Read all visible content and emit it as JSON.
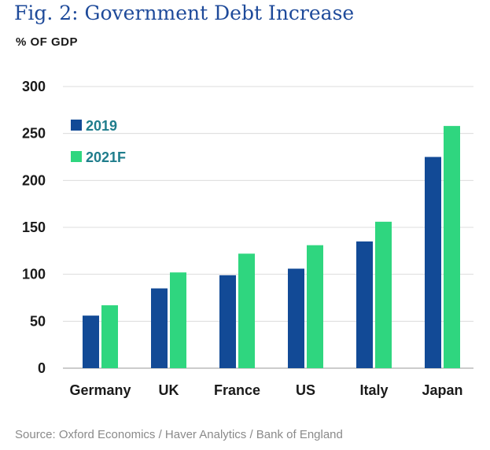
{
  "chart_data": {
    "type": "bar",
    "title": "Fig. 2: Government Debt Increase",
    "ylabel": "% OF GDP",
    "xlabel": "",
    "categories": [
      "Germany",
      "UK",
      "France",
      "US",
      "Italy",
      "Japan"
    ],
    "series": [
      {
        "name": "2019",
        "values": [
          56,
          85,
          99,
          106,
          135,
          225
        ],
        "color": "#124a96"
      },
      {
        "name": "2021F",
        "values": [
          67,
          102,
          122,
          131,
          156,
          258
        ],
        "color": "#2fd67f"
      }
    ],
    "ylim": [
      0,
      300
    ],
    "yticks": [
      "0",
      "50",
      "100",
      "150",
      "200",
      "250",
      "300"
    ],
    "grid": true,
    "legend": "top-left",
    "legend_text_color": "#1f7d8c",
    "source": "Source: Oxford Economics / Haver Analytics / Bank of England"
  }
}
